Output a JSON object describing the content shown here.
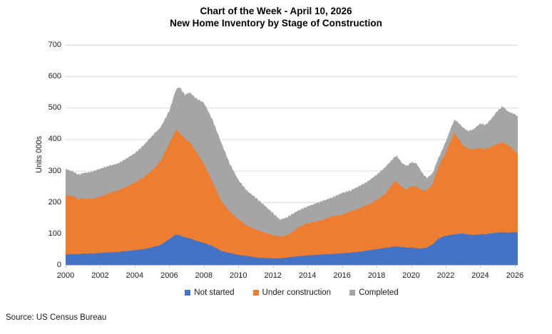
{
  "title": {
    "line1": "Chart of the Week - April 10, 2026",
    "line2": "New Home Inventory by Stage of Construction"
  },
  "source": "Source: US Census Bureau",
  "axes": {
    "y": {
      "label": "Units 000s",
      "min": 0,
      "max": 700,
      "ticks": [
        700,
        600,
        500,
        400,
        300,
        200,
        100,
        0
      ]
    },
    "x": {
      "min": 2000,
      "max": 2026.17,
      "ticks": [
        2000,
        2002,
        2004,
        2006,
        2008,
        2010,
        2012,
        2014,
        2016,
        2018,
        2020,
        2022,
        2024,
        2026
      ]
    }
  },
  "legend": {
    "items": [
      {
        "label": "Not started",
        "color": "#4472C4"
      },
      {
        "label": "Under construction",
        "color": "#ED7D31"
      },
      {
        "label": "Completed",
        "color": "#A5A5A5"
      }
    ]
  },
  "colors": {
    "gridline": "#D9D9D9",
    "axis_line": "#C6C6C6",
    "text": "#1a1a1a"
  },
  "chart_data": {
    "type": "area",
    "stacked": true,
    "title": "Chart of the Week - April 10, 2026 — New Home Inventory by Stage of Construction",
    "xlabel": "",
    "ylabel": "Units 000s",
    "xlim": [
      2000,
      2026.17
    ],
    "ylim": [
      0,
      700
    ],
    "grid": true,
    "legend_position": "bottom",
    "x": [
      2000.0,
      2000.5,
      2000.75,
      2001.0,
      2001.5,
      2002.0,
      2002.5,
      2003.0,
      2003.5,
      2004.0,
      2004.5,
      2005.0,
      2005.5,
      2006.0,
      2006.4,
      2006.6,
      2006.9,
      2007.2,
      2007.5,
      2008.0,
      2008.5,
      2009.0,
      2009.5,
      2010.0,
      2010.5,
      2011.0,
      2011.5,
      2012.0,
      2012.4,
      2012.75,
      2013.0,
      2013.5,
      2014.0,
      2014.5,
      2015.0,
      2015.5,
      2016.0,
      2016.5,
      2017.0,
      2017.5,
      2018.0,
      2018.5,
      2019.0,
      2019.15,
      2019.5,
      2019.75,
      2020.0,
      2020.3,
      2020.6,
      2020.9,
      2021.25,
      2021.5,
      2021.75,
      2022.0,
      2022.25,
      2022.5,
      2022.75,
      2023.0,
      2023.3,
      2023.6,
      2024.0,
      2024.3,
      2024.6,
      2025.0,
      2025.3,
      2025.6,
      2025.9,
      2026.17
    ],
    "series": [
      {
        "name": "Not started",
        "color": "#4472C4",
        "values": [
          33,
          35,
          34,
          36,
          36,
          38,
          40,
          41,
          44,
          47,
          50,
          56,
          63,
          82,
          97,
          94,
          88,
          84,
          78,
          70,
          60,
          45,
          38,
          32,
          28,
          24,
          22,
          21,
          21,
          23,
          25,
          27,
          30,
          32,
          34,
          35,
          37,
          39,
          42,
          46,
          50,
          54,
          58,
          58,
          57,
          55,
          55,
          53,
          52,
          55,
          65,
          80,
          88,
          93,
          95,
          97,
          99,
          100,
          97,
          95,
          98,
          97,
          100,
          103,
          104,
          102,
          104,
          103
        ]
      },
      {
        "name": "Under construction",
        "color": "#ED7D31",
        "values": [
          189,
          183,
          173,
          176,
          174,
          179,
          188,
          195,
          204,
          215,
          228,
          244,
          267,
          303,
          335,
          326,
          314,
          306,
          287,
          252,
          205,
          159,
          132,
          113,
          97,
          89,
          81,
          74,
          69,
          71,
          75,
          93,
          103,
          105,
          112,
          120,
          123,
          131,
          138,
          145,
          156,
          172,
          205,
          207,
          189,
          185,
          195,
          197,
          186,
          181,
          193,
          220,
          242,
          262,
          295,
          323,
          301,
          280,
          273,
          273,
          274,
          271,
          275,
          282,
          286,
          280,
          264,
          249
        ]
      },
      {
        "name": "Completed",
        "color": "#A5A5A5",
        "values": [
          84,
          77,
          80,
          80,
          86,
          89,
          87,
          86,
          90,
          93,
          102,
          110,
          108,
          105,
          128,
          146,
          139,
          159,
          167,
          194,
          197,
          186,
          152,
          125,
          111,
          101,
          87,
          70,
          54,
          56,
          58,
          54,
          53,
          59,
          60,
          61,
          69,
          67,
          71,
          75,
          81,
          85,
          78,
          83,
          77,
          75,
          76,
          74,
          58,
          40,
          34,
          30,
          30,
          37,
          38,
          42,
          52,
          57,
          56,
          63,
          78,
          77,
          87,
          105,
          115,
          106,
          114,
          122
        ]
      }
    ]
  }
}
